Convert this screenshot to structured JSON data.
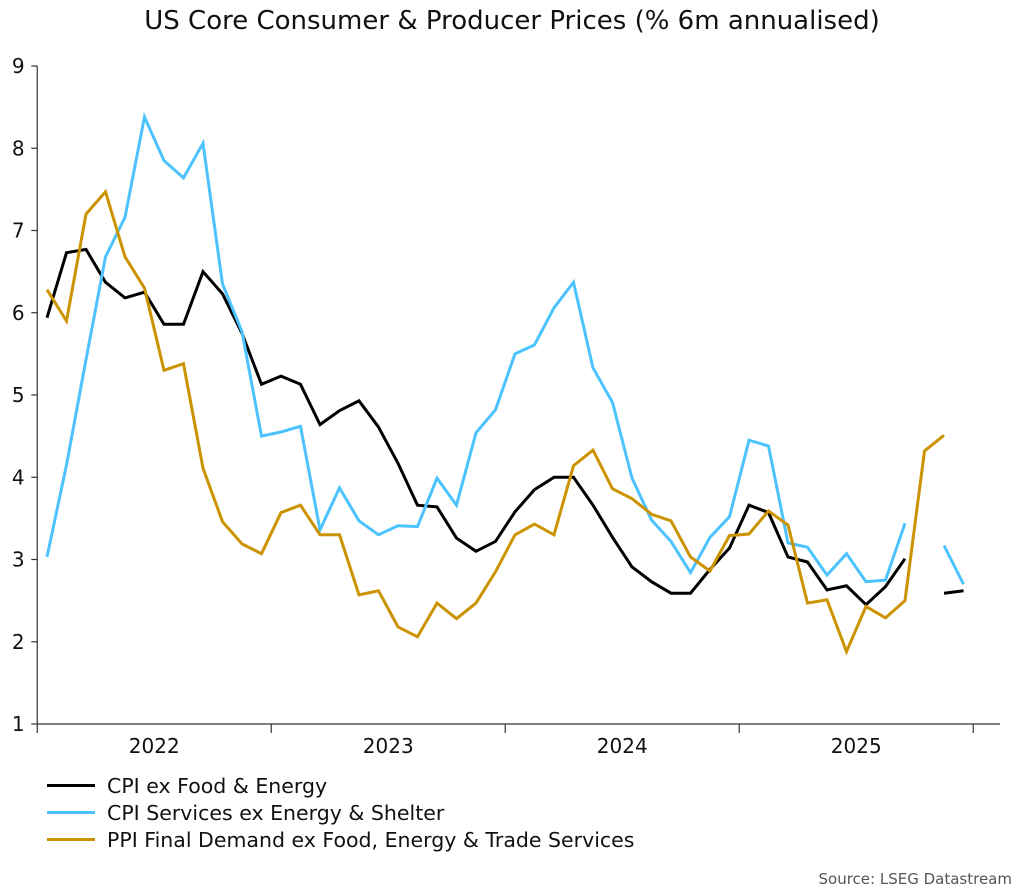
{
  "chart_data": {
    "type": "line",
    "title": "US Core Consumer & Producer Prices (% 6m annualised)",
    "source": "Source: LSEG Datastream",
    "x_start": "2022-01",
    "x_frequency": "monthly",
    "x_tick_labels": [
      "2022",
      "2023",
      "2024",
      "2025"
    ],
    "ylim": [
      1,
      9
    ],
    "y_ticks": [
      1,
      2,
      3,
      4,
      5,
      6,
      7,
      8,
      9
    ],
    "grid": false,
    "legend_position": "bottom-left",
    "series": [
      {
        "name": "CPI ex Food & Energy",
        "color": "#000000",
        "values": [
          5.94,
          6.73,
          6.77,
          6.37,
          6.18,
          6.25,
          5.86,
          5.86,
          6.5,
          6.23,
          5.75,
          5.13,
          5.23,
          5.13,
          4.64,
          4.81,
          4.93,
          4.61,
          4.17,
          3.66,
          3.64,
          3.26,
          3.1,
          3.22,
          3.58,
          3.85,
          4.0,
          4.0,
          3.66,
          3.27,
          2.91,
          2.73,
          2.59,
          2.59,
          2.88,
          3.14,
          3.66,
          3.57,
          3.03,
          2.97,
          2.63,
          2.68,
          2.45,
          2.67,
          3.01,
          null,
          2.59,
          2.62
        ]
      },
      {
        "name": "CPI Services ex Energy & Shelter",
        "color": "#4cc3ff",
        "values": [
          3.03,
          4.15,
          5.43,
          6.68,
          7.16,
          8.38,
          7.85,
          7.64,
          8.06,
          6.35,
          5.77,
          4.5,
          4.55,
          4.62,
          3.36,
          3.87,
          3.47,
          3.3,
          3.41,
          3.4,
          3.99,
          3.66,
          4.54,
          4.82,
          5.5,
          5.61,
          6.06,
          6.37,
          5.33,
          4.91,
          3.99,
          3.48,
          3.22,
          2.84,
          3.27,
          3.52,
          4.45,
          4.38,
          3.2,
          3.15,
          2.81,
          3.07,
          2.73,
          2.75,
          3.44,
          null,
          3.17,
          2.7
        ]
      },
      {
        "name": "PPI Final Demand ex Food, Energy & Trade Services",
        "color": "#cc9300",
        "values": [
          6.28,
          5.9,
          7.2,
          7.47,
          6.68,
          6.3,
          5.3,
          5.38,
          4.11,
          3.46,
          3.19,
          3.07,
          3.57,
          3.66,
          3.3,
          3.3,
          2.57,
          2.62,
          2.18,
          2.06,
          2.47,
          2.28,
          2.47,
          2.85,
          3.3,
          3.43,
          3.3,
          4.14,
          4.33,
          3.86,
          3.74,
          3.55,
          3.47,
          3.03,
          2.86,
          3.29,
          3.31,
          3.59,
          3.42,
          2.47,
          2.51,
          1.88,
          2.43,
          2.29,
          2.5,
          4.32,
          4.51,
          null
        ]
      }
    ]
  }
}
